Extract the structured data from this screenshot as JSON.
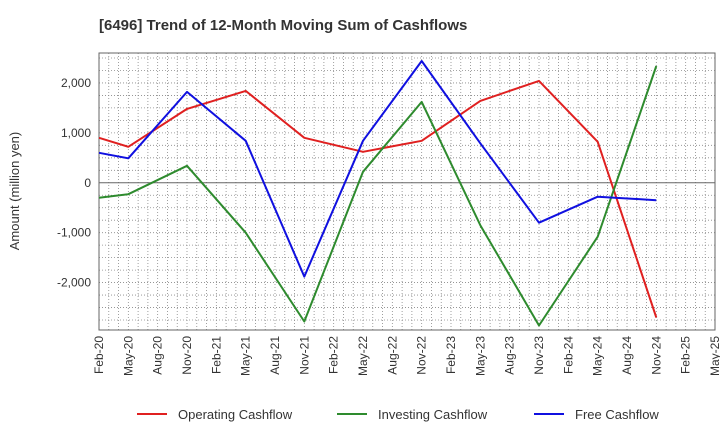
{
  "chart_data": {
    "type": "line",
    "title": "[6496]  Trend of 12-Month Moving Sum of Cashflows",
    "ylabel": "Amount (million yen)",
    "xlabel": "",
    "categories": [
      "Feb-20",
      "May-20",
      "Aug-20",
      "Nov-20",
      "Feb-21",
      "May-21",
      "Aug-21",
      "Nov-21",
      "Feb-22",
      "May-22",
      "Aug-22",
      "Nov-22",
      "Feb-23",
      "May-23",
      "Aug-23",
      "Nov-23",
      "Feb-24",
      "May-24",
      "Aug-24",
      "Nov-24",
      "Feb-25",
      "May-25"
    ],
    "ylim": [
      -2950,
      2600
    ],
    "yticks": [
      2000,
      1000,
      0,
      -1000,
      -2000
    ],
    "ytick_labels": [
      "2,000",
      "1,000",
      "0",
      "-1,000",
      "-2,000"
    ],
    "grid": true,
    "legend_position": "bottom",
    "series": [
      {
        "name": "Operating Cashflow",
        "color": "#e02020",
        "values": [
          900,
          720,
          null,
          1480,
          null,
          1840,
          null,
          900,
          null,
          620,
          null,
          840,
          null,
          1640,
          null,
          2040,
          null,
          820,
          null,
          -2700,
          null,
          null
        ]
      },
      {
        "name": "Investing Cashflow",
        "color": "#2e8b2e",
        "values": [
          -300,
          -230,
          null,
          340,
          null,
          -1000,
          null,
          -2780,
          null,
          220,
          null,
          1620,
          null,
          -850,
          null,
          -2860,
          null,
          -1080,
          null,
          2340,
          null,
          null
        ]
      },
      {
        "name": "Free Cashflow",
        "color": "#1010e0",
        "values": [
          600,
          490,
          null,
          1820,
          null,
          840,
          null,
          -1880,
          null,
          840,
          null,
          2440,
          null,
          790,
          null,
          -800,
          null,
          -280,
          null,
          -350,
          null,
          null
        ]
      }
    ]
  }
}
